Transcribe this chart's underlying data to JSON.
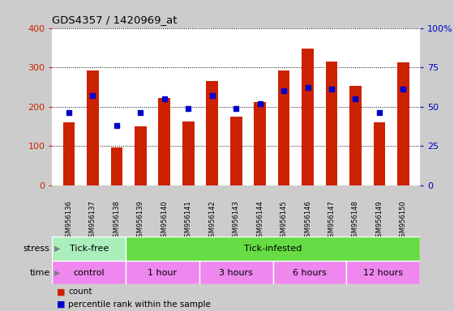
{
  "title": "GDS4357 / 1420969_at",
  "samples": [
    "GSM956136",
    "GSM956137",
    "GSM956138",
    "GSM956139",
    "GSM956140",
    "GSM956141",
    "GSM956142",
    "GSM956143",
    "GSM956144",
    "GSM956145",
    "GSM956146",
    "GSM956147",
    "GSM956148",
    "GSM956149",
    "GSM956150"
  ],
  "counts": [
    160,
    293,
    97,
    150,
    222,
    163,
    265,
    175,
    212,
    292,
    347,
    315,
    252,
    161,
    313
  ],
  "percentile_ranks": [
    46,
    57,
    38,
    46,
    55,
    49,
    57,
    49,
    52,
    60,
    62,
    61,
    55,
    46,
    61
  ],
  "count_color": "#cc2200",
  "percentile_color": "#0000cc",
  "ylim_left": [
    0,
    400
  ],
  "ylim_right": [
    0,
    100
  ],
  "yticks_left": [
    0,
    100,
    200,
    300,
    400
  ],
  "yticks_right": [
    0,
    25,
    50,
    75,
    100
  ],
  "yticklabels_right": [
    "0",
    "25",
    "50",
    "75",
    "100%"
  ],
  "stress_groups": [
    {
      "label": "Tick-free",
      "start": 0,
      "end": 3,
      "color": "#aaeebb"
    },
    {
      "label": "Tick-infested",
      "start": 3,
      "end": 15,
      "color": "#66dd44"
    }
  ],
  "time_groups": [
    {
      "label": "control",
      "start": 0,
      "end": 3,
      "color": "#ee88ee"
    },
    {
      "label": "1 hour",
      "start": 3,
      "end": 6,
      "color": "#ee88ee"
    },
    {
      "label": "3 hours",
      "start": 6,
      "end": 9,
      "color": "#ee88ee"
    },
    {
      "label": "6 hours",
      "start": 9,
      "end": 12,
      "color": "#ee88ee"
    },
    {
      "label": "12 hours",
      "start": 12,
      "end": 15,
      "color": "#ee88ee"
    }
  ],
  "bar_width": 0.5,
  "xticklabels_bg": "#cccccc",
  "plot_bg_color": "#ffffff",
  "fig_bg_color": "#cccccc",
  "legend_count_label": "count",
  "legend_pct_label": "percentile rank within the sample"
}
